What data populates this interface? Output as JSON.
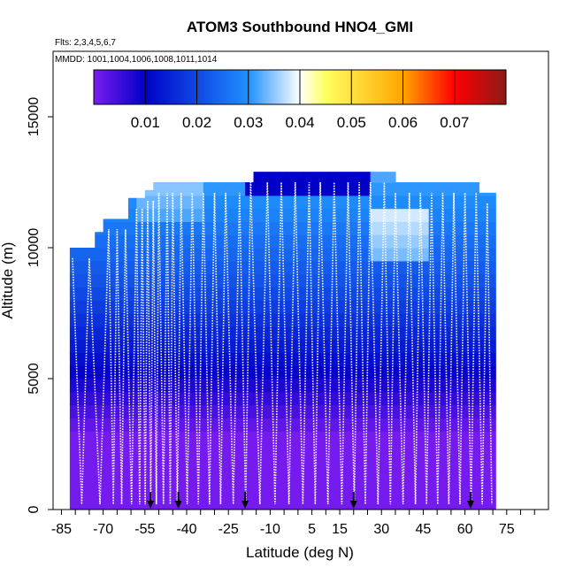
{
  "chart_data": {
    "type": "heatmap",
    "title": "ATOM3 Southbound HNO4_GMI",
    "flights_label": "Flts: 2,3,4,5,6,7",
    "mmdd_label": "MMDD: 1001,1004,1006,1008,1011,1014",
    "xlabel": "Latitude (deg N)",
    "ylabel": "Altitude (m)",
    "xlim": [
      -88,
      90
    ],
    "ylim": [
      0,
      17500
    ],
    "x_ticks": [
      -85,
      -70,
      -55,
      -40,
      -25,
      -10,
      5,
      15,
      30,
      45,
      60,
      75
    ],
    "x_tick_labels": [
      "-85",
      "-70",
      "-55",
      "-40",
      "-25",
      "-10",
      "5",
      "15",
      "30",
      "45",
      "60",
      "75"
    ],
    "x_minor_ticks": [
      -80,
      -75,
      -65,
      -60,
      -50,
      -45,
      -35,
      -30,
      -20,
      -15,
      -5,
      0,
      10,
      20,
      25,
      35,
      40,
      50,
      55,
      65,
      70,
      80,
      85
    ],
    "y_ticks": [
      0,
      5000,
      10000,
      15000
    ],
    "y_tick_labels": [
      "0",
      "5000",
      "10000",
      "15000"
    ],
    "colorbar": {
      "range": [
        0,
        0.08
      ],
      "ticks": [
        0.01,
        0.02,
        0.03,
        0.04,
        0.05,
        0.06,
        0.07
      ],
      "tick_labels": [
        "0.01",
        "0.02",
        "0.03",
        "0.04",
        "0.05",
        "0.06",
        "0.07"
      ],
      "colors": [
        "#7a1cf0",
        "#0000c8",
        "#1f90ff",
        "#ffffff",
        "#ffff60",
        "#ffa500",
        "#ff0000",
        "#8b1a1a"
      ],
      "stops": [
        0,
        0.01,
        0.03,
        0.04,
        0.045,
        0.06,
        0.07,
        0.08
      ]
    },
    "curtain_ceiling": [
      {
        "lat": -82,
        "alt": 10000
      },
      {
        "lat": -75,
        "alt": 10600
      },
      {
        "lat": -70,
        "alt": 11100
      },
      {
        "lat": -62,
        "alt": 11900
      },
      {
        "lat": -55,
        "alt": 12200
      },
      {
        "lat": -52,
        "alt": 12500
      },
      {
        "lat": -25,
        "alt": 12500
      },
      {
        "lat": -18,
        "alt": 12900
      },
      {
        "lat": 26,
        "alt": 12900
      },
      {
        "lat": 33,
        "alt": 12500
      },
      {
        "lat": 62,
        "alt": 12500
      },
      {
        "lat": 65,
        "alt": 12100
      },
      {
        "lat": 70,
        "alt": 12100
      }
    ],
    "profile_latitudes": [
      -81,
      -75,
      -68,
      -65,
      -62,
      -58,
      -56,
      -54,
      -52,
      -50,
      -47,
      -45,
      -42,
      -38,
      -34,
      -30,
      -26,
      -21,
      -17,
      -11,
      -6,
      -1,
      4,
      8,
      13,
      18,
      22,
      26,
      31,
      35,
      40,
      44,
      48,
      52,
      56,
      60,
      64,
      68
    ],
    "arrow_latitudes": [
      -53,
      -43,
      -19,
      20,
      62
    ]
  }
}
